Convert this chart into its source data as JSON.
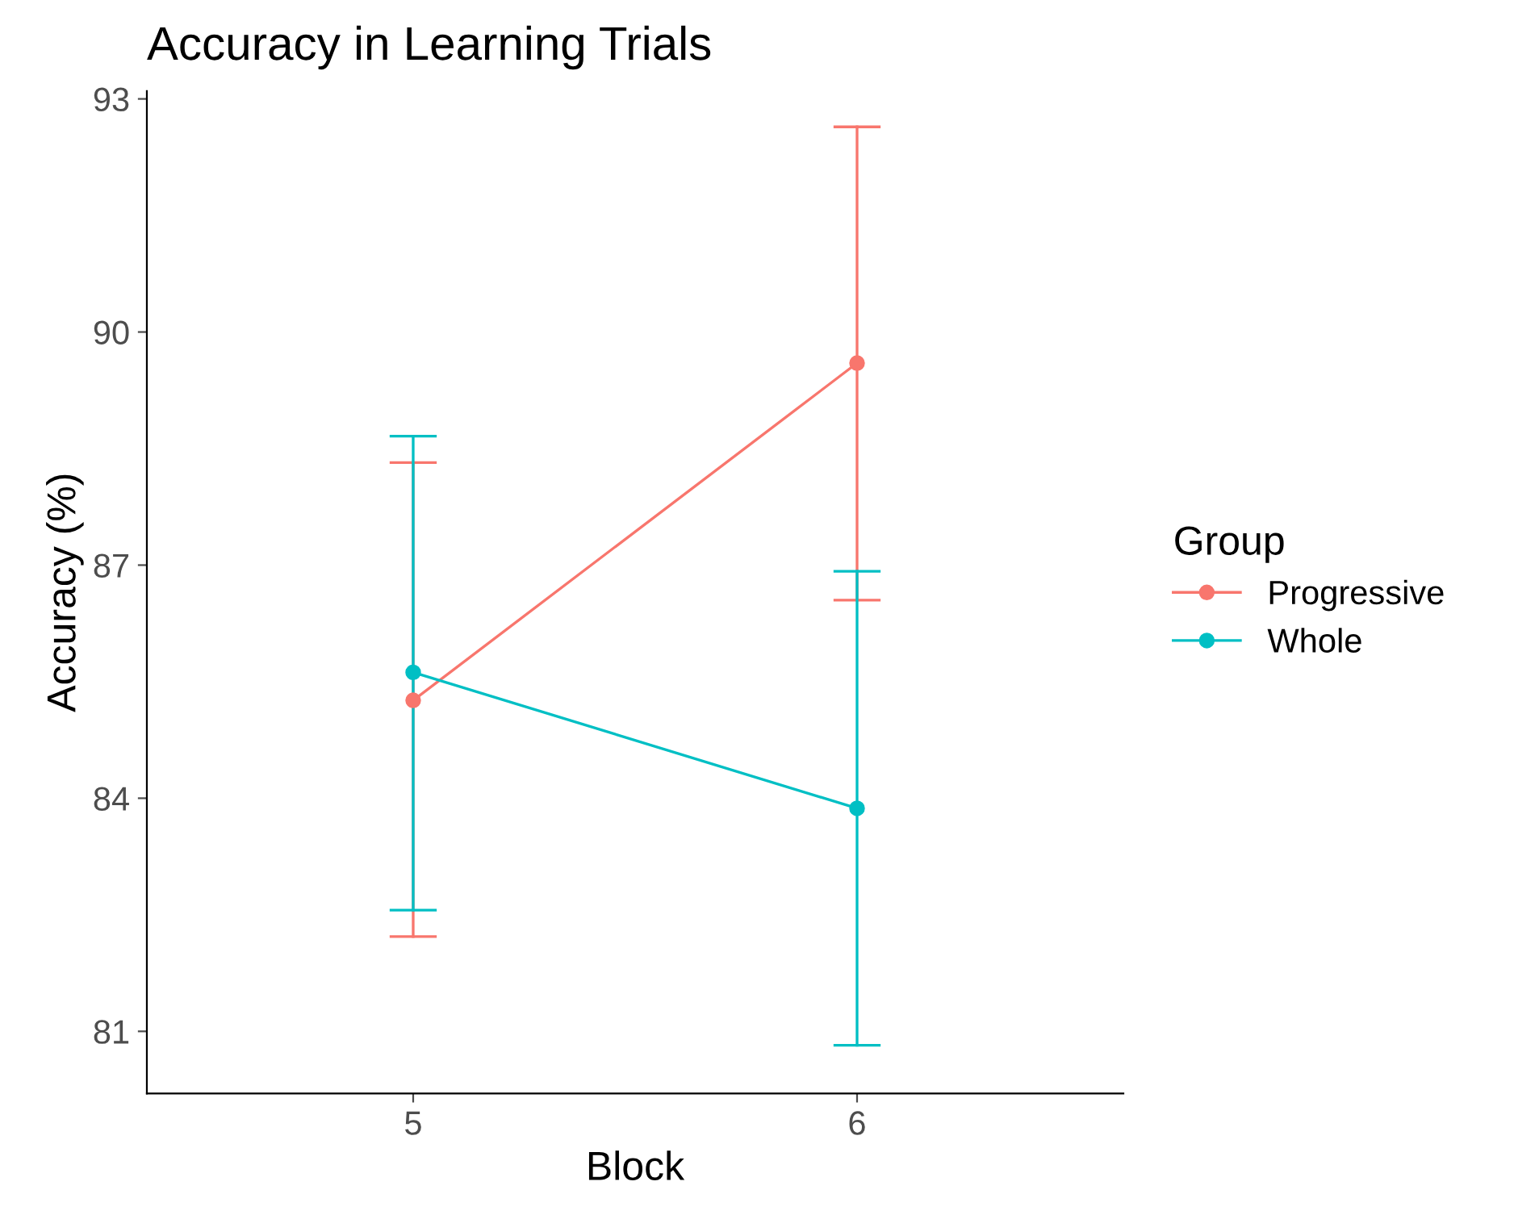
{
  "chart_data": {
    "type": "line",
    "title": "Accuracy in Learning Trials",
    "xlabel": "Block",
    "ylabel": "Accuracy (%)",
    "legend_title": "Group",
    "categories": [
      "5",
      "6"
    ],
    "series": [
      {
        "name": "Progressive",
        "color": "#f8766d",
        "values": [
          85.26,
          89.6
        ],
        "errors": [
          [
            82.22,
            88.32
          ],
          [
            86.55,
            92.64
          ]
        ]
      },
      {
        "name": "Whole",
        "color": "#00bfc4",
        "values": [
          85.62,
          83.87
        ],
        "errors": [
          [
            82.56,
            88.66
          ],
          [
            80.82,
            86.92
          ]
        ]
      }
    ],
    "ylim": [
      80.2,
      93.1
    ],
    "yticks": [
      81,
      84,
      87,
      90,
      93
    ],
    "grid": false,
    "legend": "right",
    "marker": "circle",
    "line_style": "solid"
  }
}
